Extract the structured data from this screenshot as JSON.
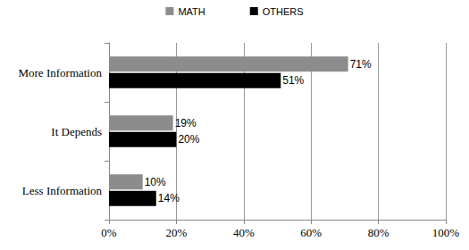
{
  "chart_data": {
    "type": "bar",
    "orientation": "horizontal",
    "categories": [
      "More Information",
      "It Depends",
      "Less Information"
    ],
    "series": [
      {
        "name": "MATH",
        "color": "#8c8c8c",
        "values": [
          71,
          19,
          10
        ],
        "value_labels": [
          "71%",
          "19%",
          "10%"
        ]
      },
      {
        "name": "OTHERS",
        "color": "#000000",
        "values": [
          51,
          20,
          14
        ],
        "value_labels": [
          "51%",
          "20%",
          "14%"
        ]
      }
    ],
    "xlim": [
      0,
      100
    ],
    "xticks": [
      {
        "value": 0,
        "label": "0%"
      },
      {
        "value": 20,
        "label": "20%"
      },
      {
        "value": 40,
        "label": "40%"
      },
      {
        "value": 60,
        "label": "60%"
      },
      {
        "value": 80,
        "label": "80%"
      },
      {
        "value": 100,
        "label": "100%"
      }
    ],
    "grid": true,
    "legend": "top",
    "data_labels": true
  }
}
